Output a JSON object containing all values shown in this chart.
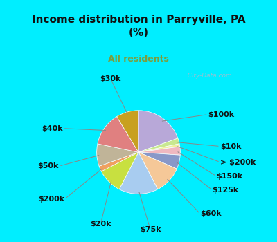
{
  "title": "Income distribution in Parryville, PA\n(%)",
  "subtitle": "All residents",
  "title_color": "#111111",
  "subtitle_color": "#7b9e3e",
  "bg_cyan": "#00eeff",
  "bg_chart_inner": "#e8f5ee",
  "labels": [
    "$100k",
    "$10k",
    "> $200k",
    "$150k",
    "$125k",
    "$60k",
    "$75k",
    "$20k",
    "$200k",
    "$50k",
    "$40k",
    "$30k"
  ],
  "values": [
    18,
    2,
    1,
    3,
    5,
    10,
    14,
    9,
    2,
    8,
    12,
    8
  ],
  "colors": [
    "#b8a8d8",
    "#c8e890",
    "#f0f0a0",
    "#f0b8c0",
    "#8898c8",
    "#f5c898",
    "#a8ccf0",
    "#c8e040",
    "#f0a060",
    "#c0b498",
    "#e08080",
    "#c8a020"
  ],
  "watermark": "  City-Data.com",
  "watermark_color": "#aabbcc",
  "label_fontsize": 8,
  "label_color": "#111111"
}
